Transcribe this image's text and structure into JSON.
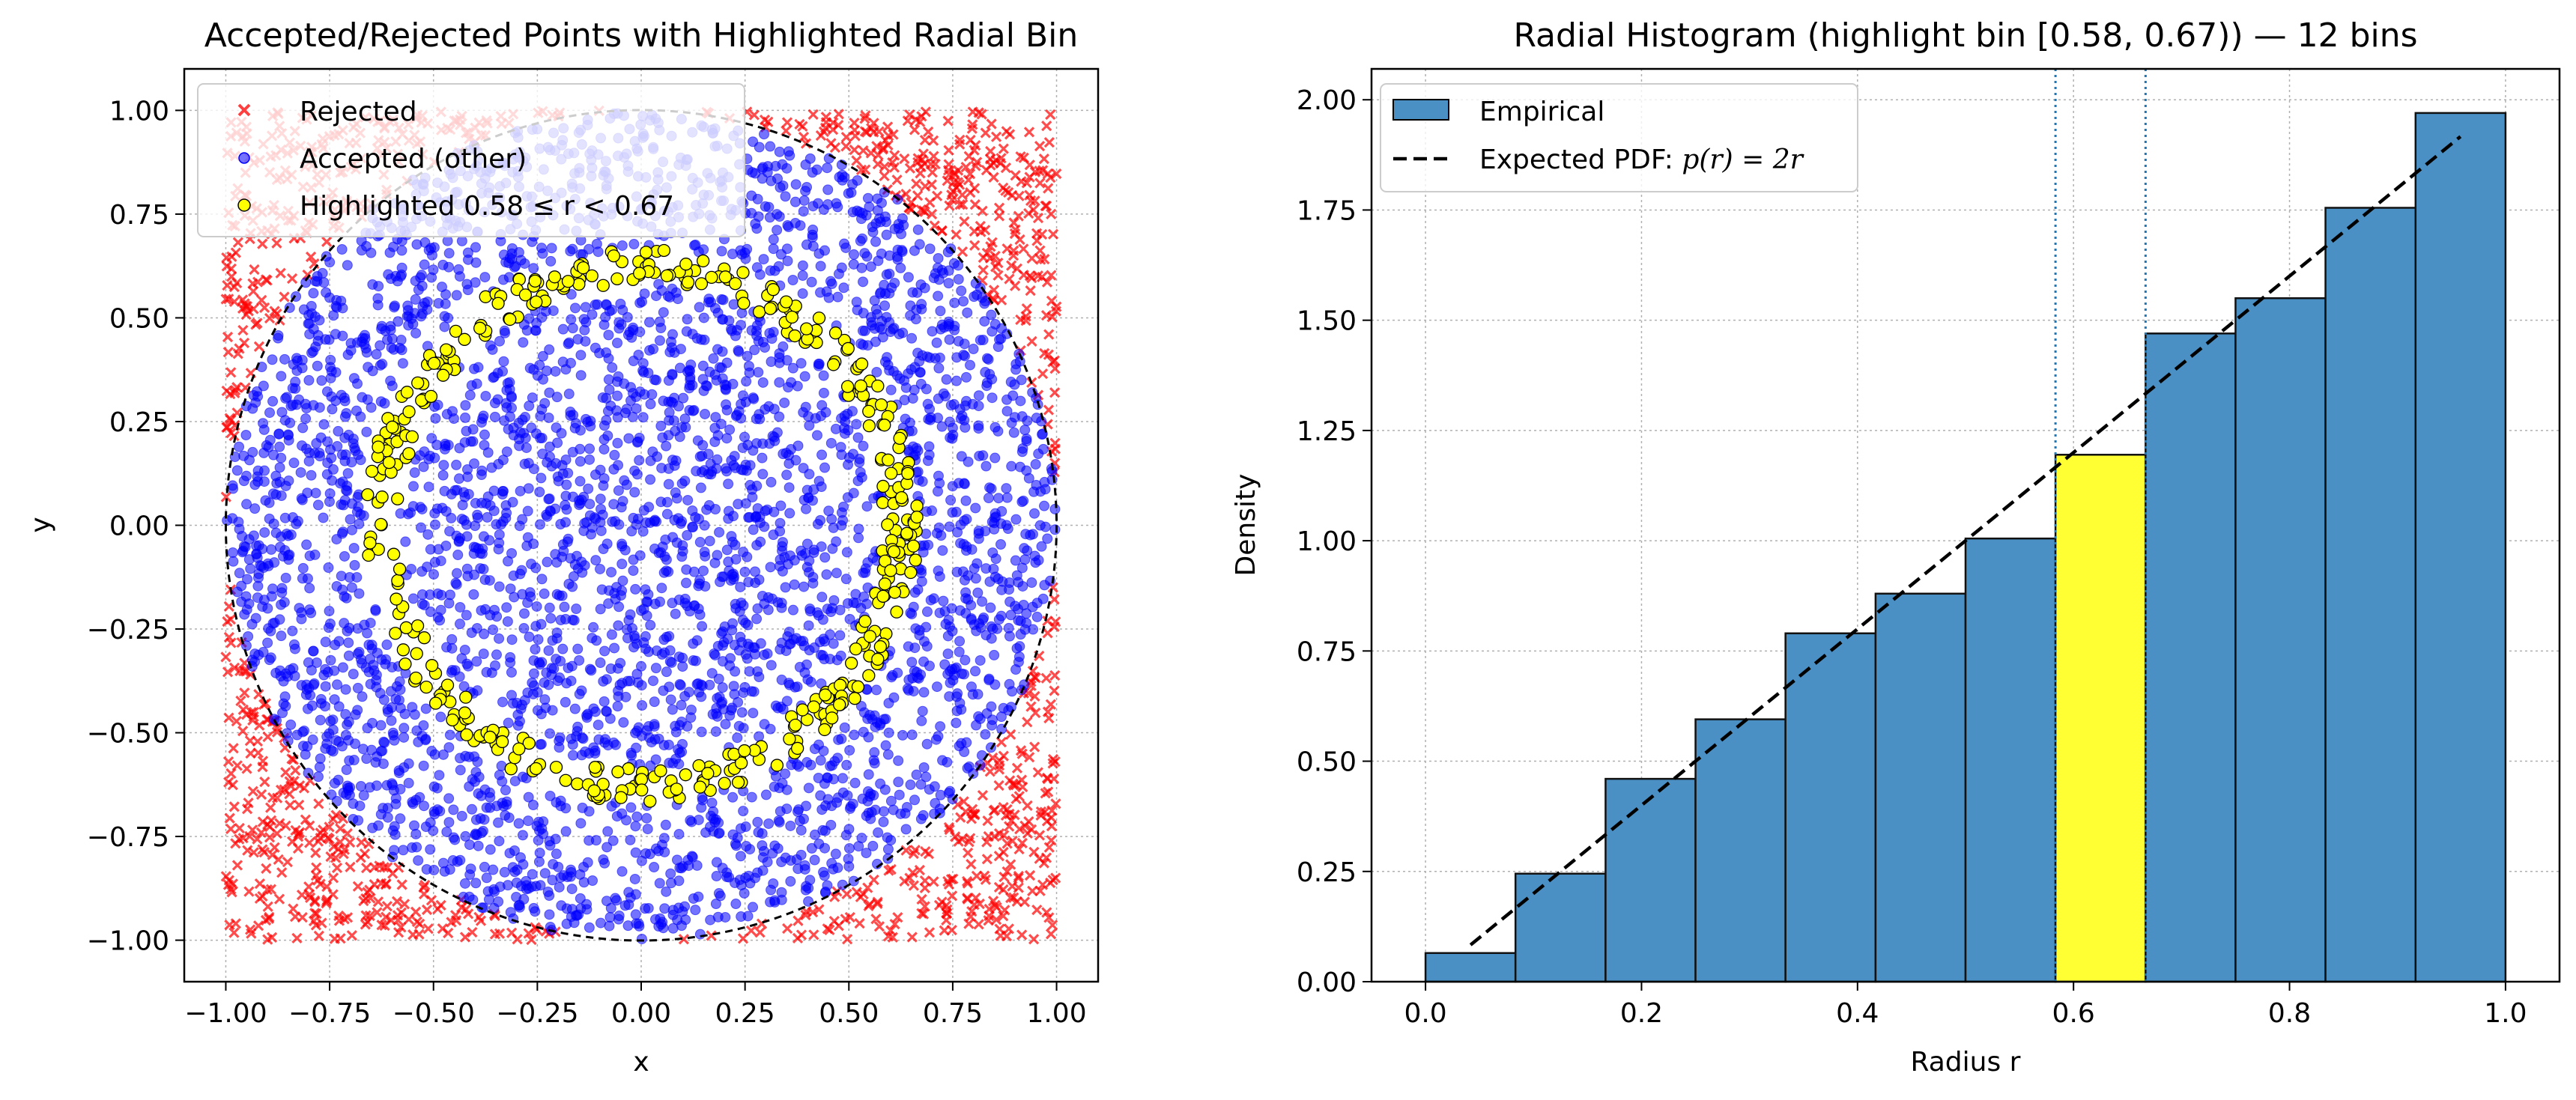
{
  "chart_data": [
    {
      "type": "scatter",
      "title": "Accepted/Rejected Points with Highlighted Radial Bin",
      "xlabel": "x",
      "ylabel": "y",
      "xlim": [
        -1.1,
        1.1
      ],
      "ylim": [
        -1.1,
        1.1
      ],
      "xticks": [
        -1.0,
        -0.75,
        -0.5,
        -0.25,
        0.0,
        0.25,
        0.5,
        0.75,
        1.0
      ],
      "yticks": [
        -1.0,
        -0.75,
        -0.5,
        -0.25,
        0.0,
        0.25,
        0.5,
        0.75,
        1.0
      ],
      "xtick_labels": [
        "−1.00",
        "−0.75",
        "−0.50",
        "−0.25",
        "0.00",
        "0.25",
        "0.50",
        "0.75",
        "1.00"
      ],
      "ytick_labels": [
        "−1.00",
        "−0.75",
        "−0.50",
        "−0.25",
        "0.00",
        "0.25",
        "0.50",
        "0.75",
        "1.00"
      ],
      "grid": true,
      "legend_position": "top-left",
      "unit_circle_radius": 1.0,
      "highlight_range": [
        0.5833,
        0.6667
      ],
      "series": [
        {
          "name": "Rejected",
          "marker": "x",
          "color": "#ff0000",
          "sampling": "uniform square [-1,1]×[-1,1], r ≥ 1",
          "x": [
            0.91,
            -0.88,
            0.95,
            -0.97,
            0.82,
            -0.9,
            0.97,
            -0.84,
            0.76,
            -0.72,
            0.88,
            -0.95
          ],
          "y": [
            0.92,
            0.86,
            -0.89,
            -0.93,
            -0.97,
            0.97,
            0.4,
            -0.74,
            0.96,
            -0.93,
            -0.6,
            0.55
          ]
        },
        {
          "name": "Accepted (other)",
          "marker": "circle",
          "color": "#0000ff",
          "sampling": "uniform square [-1,1]×[-1,1], r < 1, outside highlight bin",
          "x": [
            0.1,
            -0.3,
            0.45,
            -0.8,
            0.2,
            0.75,
            -0.1,
            0.3,
            -0.5,
            0.85
          ],
          "y": [
            0.2,
            -0.4,
            0.1,
            0.3,
            -0.85,
            -0.2,
            0.9,
            0.4,
            -0.1,
            0.3
          ]
        },
        {
          "name": "Highlighted 0.58 ≤ r < 0.67",
          "marker": "circle",
          "color": "#ffff00",
          "edgecolor": "#000000",
          "sampling": "uniform square [-1,1]×[-1,1], 0.5833 ≤ r < 0.6667",
          "x": [
            0.62,
            -0.6,
            0.0,
            0.43,
            -0.45,
            0.2,
            -0.25,
            0.6
          ],
          "y": [
            0.0,
            0.1,
            0.62,
            0.44,
            -0.42,
            -0.6,
            0.57,
            -0.25
          ]
        }
      ]
    },
    {
      "type": "bar",
      "title": "Radial Histogram (highlight bin [0.58, 0.67)) — 12 bins",
      "xlabel": "Radius r",
      "ylabel": "Density",
      "xlim": [
        -0.05,
        1.05
      ],
      "ylim": [
        0.0,
        2.07
      ],
      "xticks": [
        0.0,
        0.2,
        0.4,
        0.6,
        0.8,
        1.0
      ],
      "yticks": [
        0.0,
        0.25,
        0.5,
        0.75,
        1.0,
        1.25,
        1.5,
        1.75,
        2.0
      ],
      "xtick_labels": [
        "0.0",
        "0.2",
        "0.4",
        "0.6",
        "0.8",
        "1.0"
      ],
      "ytick_labels": [
        "0.00",
        "0.25",
        "0.50",
        "0.75",
        "1.00",
        "1.25",
        "1.50",
        "1.75",
        "2.00"
      ],
      "grid": true,
      "legend_position": "top-left",
      "bin_edges": [
        0.0,
        0.0833,
        0.1667,
        0.25,
        0.3333,
        0.4167,
        0.5,
        0.5833,
        0.6667,
        0.75,
        0.8333,
        0.9167,
        1.0
      ],
      "values": [
        0.065,
        0.245,
        0.46,
        0.595,
        0.79,
        0.88,
        1.005,
        1.195,
        1.47,
        1.55,
        1.755,
        1.97
      ],
      "highlight_index": 7,
      "bar_color": "#4a90c4",
      "highlight_color": "#ffff33",
      "expected_pdf": {
        "x_start": 0.0417,
        "x_end": 0.9583
      },
      "vlines": [
        0.5833,
        0.6667
      ],
      "series": [
        {
          "name": "Empirical"
        },
        {
          "name_prefix": "Expected PDF: ",
          "name_math": "p(r) = 2r",
          "style": "dashed",
          "color": "#000000"
        }
      ]
    }
  ]
}
